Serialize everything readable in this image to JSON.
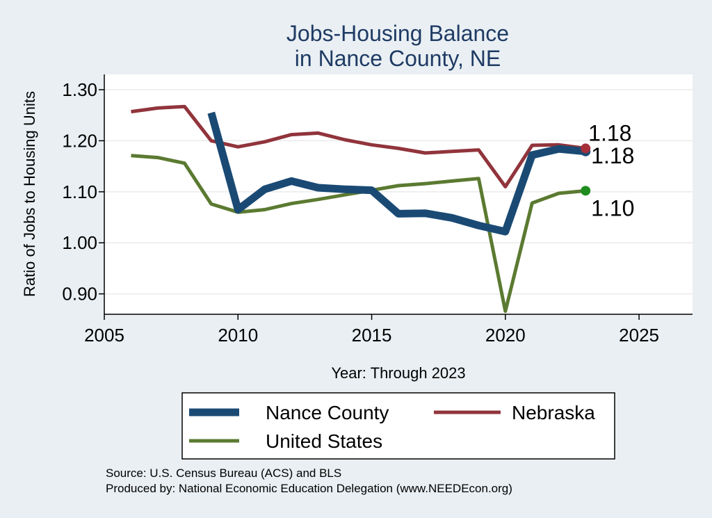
{
  "chart_data": {
    "type": "line",
    "title": [
      "Jobs-Housing Balance",
      "in Nance County, NE"
    ],
    "xlabel": "Year: Through 2023",
    "ylabel": "Ratio of Jobs to Housing Units",
    "xlim": [
      2005,
      2027
    ],
    "ylim": [
      0.86,
      1.33
    ],
    "xticks": [
      2005,
      2010,
      2015,
      2020,
      2025
    ],
    "yticks": [
      0.9,
      1.0,
      1.1,
      1.2,
      1.3
    ],
    "ytick_labels": [
      "0.90",
      "1.00",
      "1.10",
      "1.20",
      "1.30"
    ],
    "grid": true,
    "legend_position": "bottom",
    "series": [
      {
        "name": "Nance County",
        "color": "#1a4a74",
        "x": [
          2009,
          2010,
          2011,
          2012,
          2013,
          2014,
          2015,
          2016,
          2017,
          2018,
          2019,
          2020,
          2021,
          2022,
          2023
        ],
        "y": [
          1.255,
          1.065,
          1.105,
          1.121,
          1.108,
          1.105,
          1.103,
          1.057,
          1.058,
          1.049,
          1.034,
          1.022,
          1.172,
          1.184,
          1.179
        ],
        "end_label": "1.18",
        "end_dot_color": "#1a4a74"
      },
      {
        "name": "Nebraska",
        "color": "#91343c",
        "x": [
          2006,
          2007,
          2008,
          2009,
          2010,
          2011,
          2012,
          2013,
          2014,
          2015,
          2016,
          2017,
          2018,
          2019,
          2020,
          2021,
          2022,
          2023
        ],
        "y": [
          1.257,
          1.264,
          1.267,
          1.2,
          1.188,
          1.198,
          1.212,
          1.215,
          1.202,
          1.192,
          1.185,
          1.176,
          1.179,
          1.182,
          1.11,
          1.191,
          1.192,
          1.185
        ],
        "end_label": "1.18",
        "end_dot_color": "#a5303a"
      },
      {
        "name": "United States",
        "color": "#5b7a31",
        "x": [
          2006,
          2007,
          2008,
          2009,
          2010,
          2011,
          2012,
          2013,
          2014,
          2015,
          2016,
          2017,
          2018,
          2019,
          2020,
          2021,
          2022,
          2023
        ],
        "y": [
          1.171,
          1.167,
          1.156,
          1.076,
          1.06,
          1.065,
          1.077,
          1.085,
          1.094,
          1.103,
          1.112,
          1.116,
          1.121,
          1.126,
          0.866,
          1.078,
          1.097,
          1.102
        ],
        "end_label": "1.10",
        "end_dot_color": "#1e8c1e"
      }
    ]
  },
  "footer": {
    "source": "Source: U.S. Census Bureau (ACS) and BLS",
    "produced": "Produced by: National Economic Education Delegation (www.NEEDEcon.org)"
  }
}
